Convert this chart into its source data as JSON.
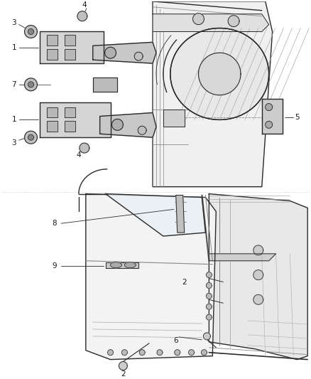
{
  "background_color": "#ffffff",
  "fig_width": 4.38,
  "fig_height": 5.33,
  "dpi": 100,
  "line_color": "#2a2a2a",
  "label_color": "#1a1a1a"
}
